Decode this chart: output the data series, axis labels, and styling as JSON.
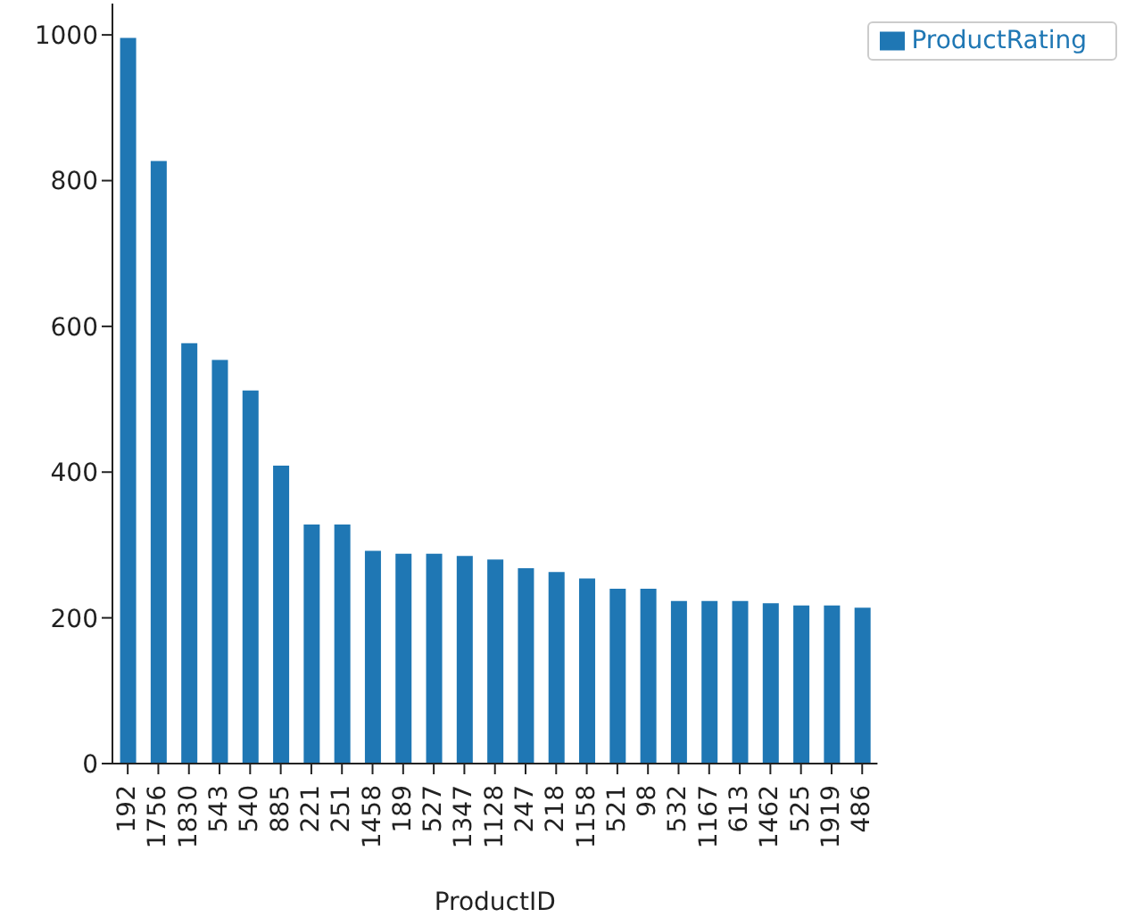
{
  "chart_data": {
    "type": "bar",
    "xlabel": "ProductID",
    "categories": [
      "192",
      "1756",
      "1830",
      "543",
      "540",
      "885",
      "221",
      "251",
      "1458",
      "189",
      "527",
      "1347",
      "1128",
      "247",
      "218",
      "1158",
      "521",
      "98",
      "532",
      "1167",
      "613",
      "1462",
      "525",
      "1919",
      "486"
    ],
    "series": [
      {
        "name": "ProductRating",
        "color": "#1f77b4",
        "values": [
          996,
          827,
          577,
          554,
          512,
          409,
          328,
          328,
          292,
          288,
          288,
          285,
          280,
          268,
          263,
          254,
          240,
          240,
          223,
          223,
          223,
          220,
          217,
          217,
          214
        ]
      }
    ],
    "ylim": [
      0,
      1043
    ],
    "yticks": [
      0,
      200,
      400,
      600,
      800,
      1000
    ],
    "grid": false,
    "legend": "top right"
  }
}
